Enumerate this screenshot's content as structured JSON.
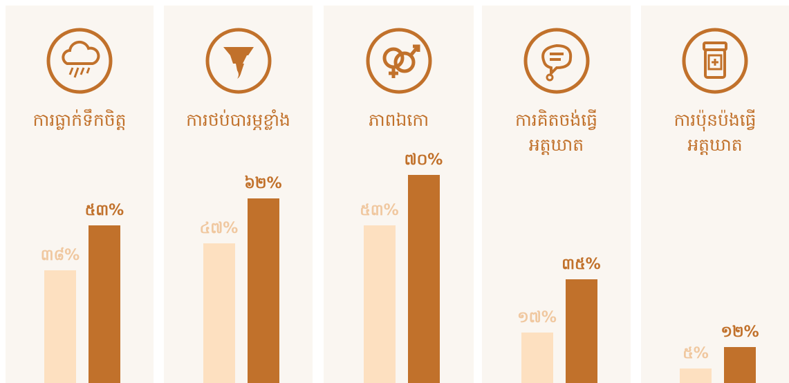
{
  "chart_data": {
    "type": "bar",
    "categories": [
      "ការធ្លាក់ទឹកចិត្ត",
      "ការថប់បារម្ភខ្លាំង",
      "ភាពឯកោ",
      "ការគិតចង់ធ្វើ\nអត្តឃាត",
      "ការប៉ុនប៉ងធ្វើ\nអត្តឃាត"
    ],
    "series": [
      {
        "color": "#fde0c0",
        "values": [
          38,
          47,
          53,
          17,
          5
        ],
        "value_labels": [
          "៣៨%",
          "៤៧%",
          "៥៣%",
          "១៧%",
          "៥%"
        ]
      },
      {
        "color": "#c1712b",
        "values": [
          53,
          62,
          70,
          35,
          12
        ],
        "value_labels": [
          "៥៣%",
          "៦២%",
          "៧០%",
          "៣៥%",
          "១២%"
        ]
      }
    ]
  }
}
